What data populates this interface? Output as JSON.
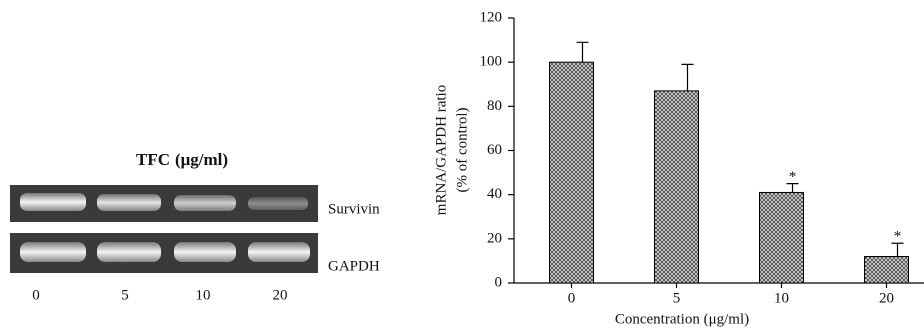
{
  "gel": {
    "title_main": "TFC",
    "title_unit": "(μg/ml)",
    "rows": [
      "Survivin",
      "GAPDH"
    ],
    "lanes": [
      "0",
      "5",
      "10",
      "20"
    ]
  },
  "chart_data": {
    "type": "bar",
    "y_label": [
      "mRNA/GAPDH ratio",
      "(% of control)"
    ],
    "x_label": "Concentration (μg/ml)",
    "categories": [
      "0",
      "5",
      "10",
      "20"
    ],
    "values": [
      100,
      87,
      41,
      12
    ],
    "errors": [
      9,
      12,
      4,
      6
    ],
    "annotations": [
      {
        "category": "10",
        "text": "*"
      },
      {
        "category": "20",
        "text": "*"
      }
    ],
    "color": "#777777",
    "ylim": [
      0,
      120
    ],
    "yticks": [
      0,
      20,
      40,
      60,
      80,
      100,
      120
    ],
    "grid": false
  }
}
